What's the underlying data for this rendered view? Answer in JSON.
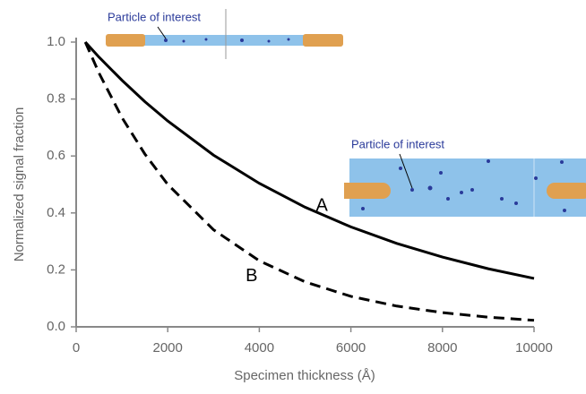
{
  "chart_data": {
    "type": "line",
    "x_label": "Specimen thickness (Å)",
    "y_label": "Normalized signal fraction",
    "x": [
      200,
      500,
      1000,
      1500,
      2000,
      3000,
      4000,
      5000,
      6000,
      7000,
      8000,
      9000,
      10000
    ],
    "series": [
      {
        "name": "A",
        "color": "#000000",
        "dash": false,
        "values": [
          1.0,
          0.947,
          0.866,
          0.791,
          0.723,
          0.603,
          0.504,
          0.42,
          0.351,
          0.293,
          0.245,
          0.204,
          0.17
        ]
      },
      {
        "name": "B",
        "color": "#000000",
        "dash": true,
        "values": [
          1.0,
          0.891,
          0.735,
          0.607,
          0.5,
          0.341,
          0.232,
          0.158,
          0.107,
          0.073,
          0.05,
          0.034,
          0.023
        ]
      }
    ],
    "xlim": [
      0,
      10000
    ],
    "xticks": [
      0,
      2000,
      4000,
      6000,
      8000,
      10000
    ],
    "ylim": [
      0,
      1.0
    ],
    "yticks": [
      {
        "value": 0,
        "label": "0.0"
      },
      0.2,
      0.4,
      0.6,
      0.8,
      {
        "value": 1.0,
        "label": "1.0"
      }
    ],
    "inset_labels": [
      "Particle of interest",
      "Particle of interest"
    ]
  }
}
